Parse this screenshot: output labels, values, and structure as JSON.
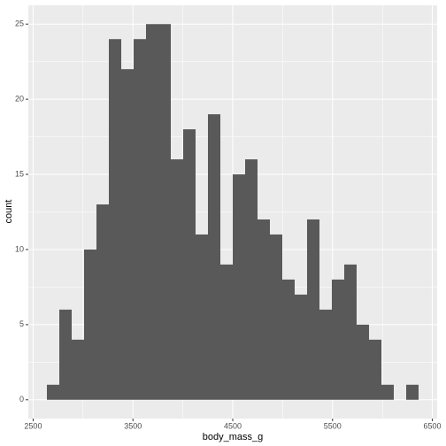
{
  "chart_data": {
    "type": "histogram",
    "x_label": "body_mass_g",
    "y_label": "count",
    "bins": [
      2637.9,
      2762.1,
      2886.2,
      3010.3,
      3134.5,
      3258.6,
      3382.8,
      3506.9,
      3631.0,
      3755.2,
      3879.3,
      4003.4,
      4127.6,
      4251.7,
      4375.9,
      4500.0,
      4624.1,
      4748.3,
      4872.4,
      4996.6,
      5120.7,
      5244.8,
      5369.0,
      5493.1,
      5617.2,
      5741.4,
      5865.5,
      5989.7,
      6113.8,
      6237.9,
      6362.1
    ],
    "values": [
      1,
      6,
      4,
      10,
      13,
      24,
      22,
      24,
      25,
      25,
      16,
      18,
      11,
      19,
      9,
      15,
      16,
      12,
      11,
      8,
      7,
      12,
      6,
      8,
      9,
      5,
      4,
      1,
      0,
      1
    ],
    "color": "#595959",
    "xlim": [
      2451.7,
      6548.3
    ],
    "xticks": [
      2500,
      3500,
      4500,
      5500,
      6500
    ],
    "x_minor_ticks": [
      3000,
      4000,
      5000,
      6000
    ],
    "ylim": [
      -1.25,
      26.25
    ],
    "yticks": [
      0,
      5,
      10,
      15,
      20,
      25
    ],
    "y_minor_ticks": [
      2.5,
      7.5,
      12.5,
      17.5,
      22.5
    ],
    "grid": true
  }
}
